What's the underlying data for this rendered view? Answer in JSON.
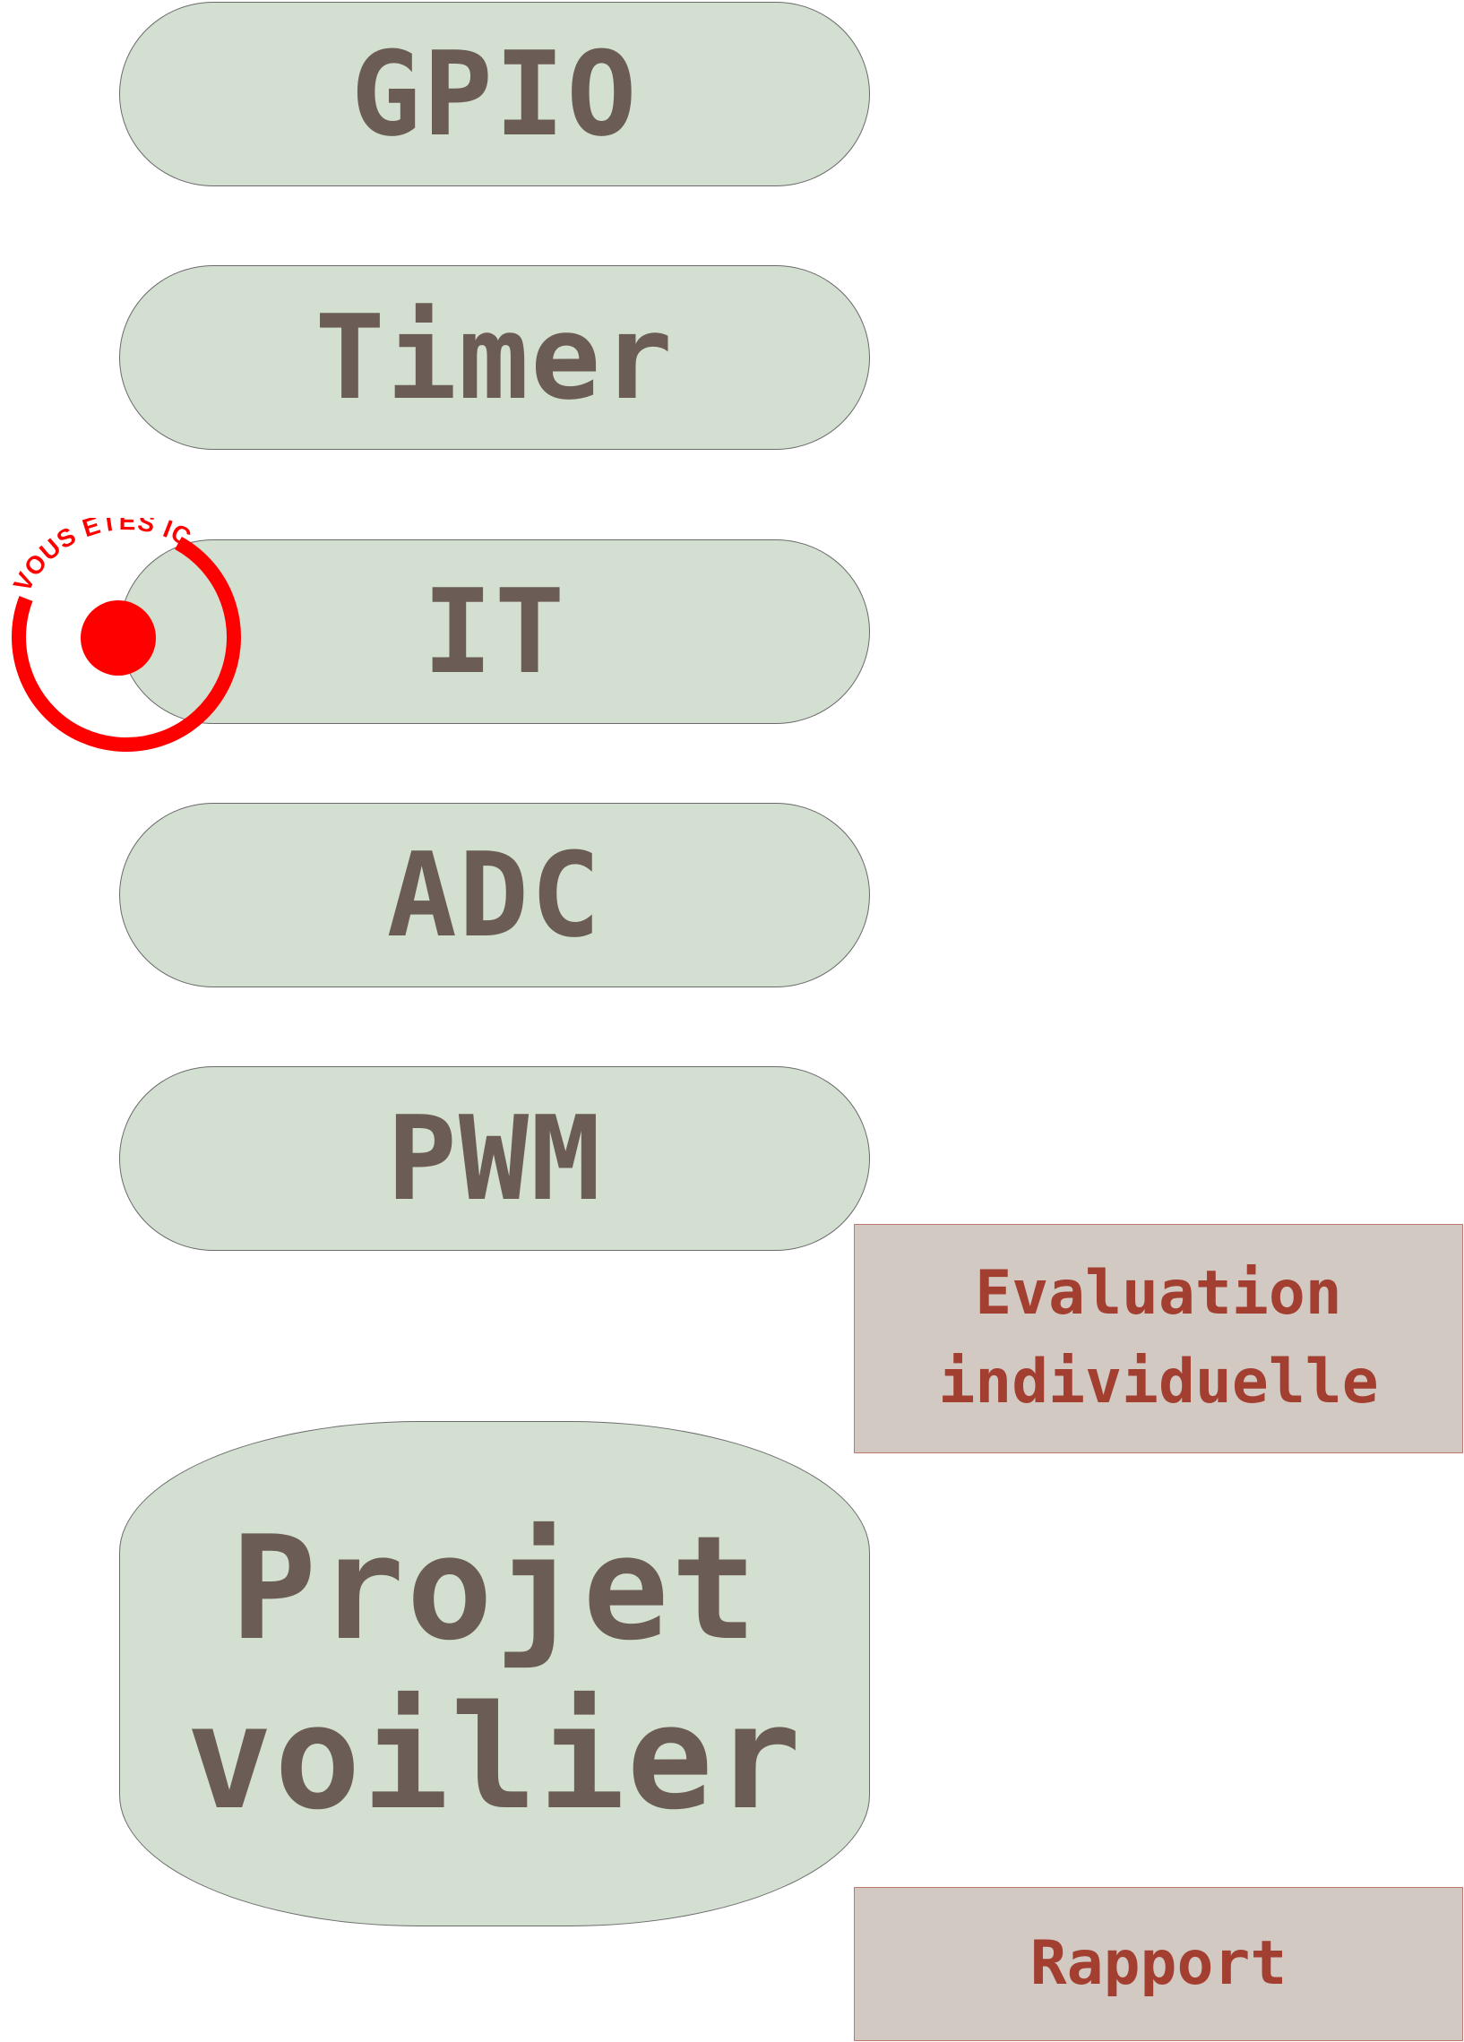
{
  "modules": [
    {
      "label": "GPIO"
    },
    {
      "label": "Timer"
    },
    {
      "label": "IT"
    },
    {
      "label": "ADC"
    },
    {
      "label": "PWM"
    }
  ],
  "project": {
    "line1": "Projet",
    "line2": "voilier"
  },
  "notes": {
    "evaluation_line1": "Evaluation",
    "evaluation_line2": "individuelle",
    "rapport": "Rapport"
  },
  "marker": {
    "label": "VOUS ÊTES ICI",
    "color": "#ff0000",
    "current_module": "IT"
  },
  "colors": {
    "pill_fill": "#d3dfd1",
    "pill_text": "#6b5d55",
    "note_fill": "#d3c9c3",
    "note_text": "#a23f30"
  }
}
